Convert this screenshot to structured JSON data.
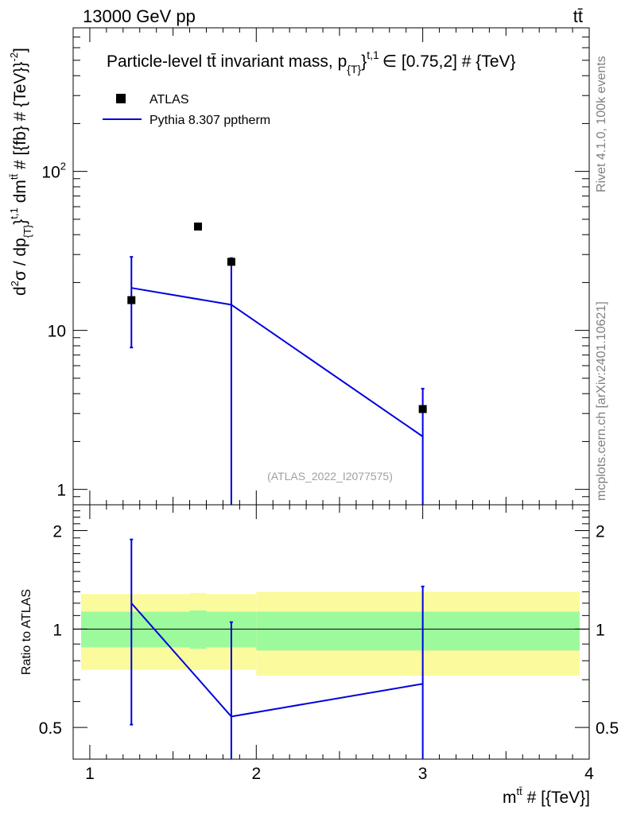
{
  "header": {
    "energy_label": "13000 GeV pp",
    "process_label": "tt̄"
  },
  "side_text": {
    "rivet": "Rivet 4.1.0,  100k events",
    "source": "mcplots.cern.ch [arXiv:2401.10621]"
  },
  "chart_data": {
    "type": "line",
    "title": "Particle-level t̄t̄ invariant mass, p{T}t,1 ∈ [0.75,2] # {TeV}",
    "title_parts": {
      "main": "Particle-level tt̄ invariant mass, p",
      "sub": "{T}",
      "close": "}",
      "sup": "t,1",
      "rest": "∈ [0.75,2] # {TeV}"
    },
    "watermark": "(ATLAS_2022_I2077575)",
    "xlabel": "m",
    "xlabel_sup": "tt̄",
    "xlabel_rest": " # [{TeV}]",
    "ylabel": "d²σ / dp{T}t,1 dm^tt̄ # [{fb} # {TeV}⁻²]",
    "ylabel_parts": {
      "p1": "d",
      "s1": "2",
      "p2": "σ / dp",
      "b1": "{T}",
      "p3": "}",
      "s2": "t,1",
      "p4": " dm",
      "s3": "tt̄",
      "p5": " # [{fb} # {TeV}}",
      "s4": "-2",
      "p6": "]"
    },
    "ratio_ylabel": "Ratio to ATLAS",
    "xlim": [
      0.9,
      4.0
    ],
    "ylim": [
      0.8,
      800
    ],
    "ratio_ylim": [
      0.4,
      2.4
    ],
    "yscale": "log",
    "x_ticks": [
      "1",
      "2",
      "3",
      "4"
    ],
    "y_ticks": [
      "1",
      "10",
      "10²"
    ],
    "ratio_ticks": [
      "0.5",
      "1",
      "2"
    ],
    "legend": {
      "position": "top-left",
      "entries": [
        "ATLAS",
        "Pythia 8.307 pptherm"
      ]
    },
    "bin_edges": [
      0.9,
      1.6,
      1.7,
      2.0,
      4.0
    ],
    "series": [
      {
        "name": "ATLAS",
        "style": "markers",
        "x": [
          1.25,
          1.65,
          1.85,
          3.0
        ],
        "y": [
          15.5,
          45.0,
          27.0,
          3.2
        ]
      },
      {
        "name": "Pythia 8.307 pptherm",
        "style": "line",
        "x": [
          1.25,
          1.85,
          3.0
        ],
        "y": [
          18.5,
          14.5,
          2.15
        ],
        "err_lo": [
          7.8,
          0.0,
          0.0
        ],
        "err_hi": [
          29.0,
          28.5,
          4.3
        ]
      }
    ],
    "ratio": {
      "x": [
        1.25,
        1.85,
        3.0
      ],
      "y": [
        1.2,
        0.54,
        0.68
      ],
      "err_lo": [
        0.51,
        0.0,
        0.0
      ],
      "err_hi": [
        1.88,
        1.05,
        1.35
      ],
      "band_inner_lo": [
        0.88,
        0.87,
        0.88,
        0.86
      ],
      "band_inner_hi": [
        1.13,
        1.14,
        1.13,
        1.13
      ],
      "band_outer_lo": [
        0.75,
        0.75,
        0.75,
        0.72
      ],
      "band_outer_hi": [
        1.28,
        1.29,
        1.28,
        1.3
      ]
    },
    "colors": {
      "mc": "#0000dd",
      "data": "#000000",
      "band_inner": "#9cfa9c",
      "band_outer": "#fbfb9d",
      "side_text": "#808080"
    }
  }
}
